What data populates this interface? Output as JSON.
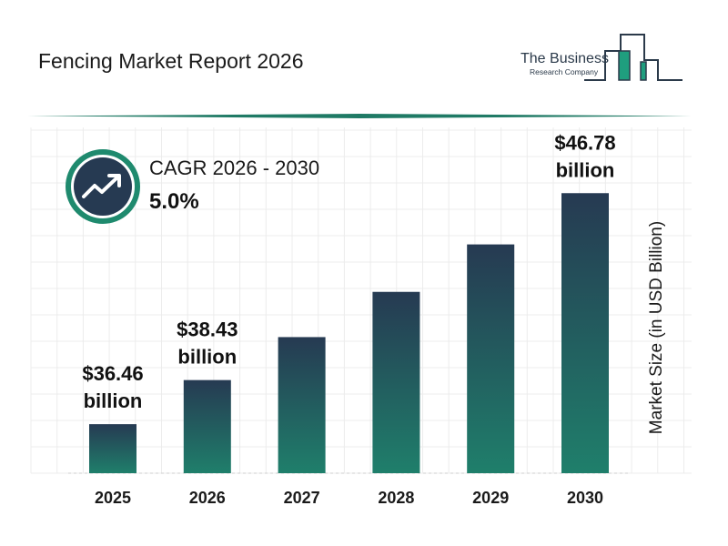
{
  "header": {
    "title": "Fencing Market Report 2026",
    "logo_line1": "The Business",
    "logo_line2": "Research Company"
  },
  "cagr": {
    "label": "CAGR 2026 - 2030",
    "value": "5.0%",
    "icon": "trending-up-icon"
  },
  "colors": {
    "bar_top": "#263a52",
    "bar_bottom": "#1f7f6b",
    "accent": "#1f8a6e",
    "navy": "#263a52"
  },
  "chart_data": {
    "type": "bar",
    "categories": [
      "2025",
      "2026",
      "2027",
      "2028",
      "2029",
      "2030"
    ],
    "values": [
      36.46,
      38.43,
      40.35,
      42.37,
      44.49,
      46.78
    ],
    "data_labels": [
      {
        "index": 0,
        "line1": "$36.46",
        "line2": "billion"
      },
      {
        "index": 1,
        "line1": "$38.43",
        "line2": "billion"
      },
      {
        "index": 5,
        "line1": "$46.78",
        "line2": "billion"
      }
    ],
    "xlabel": "",
    "ylabel": "Market Size (in USD Billion)",
    "grid": true,
    "legend": "none"
  }
}
